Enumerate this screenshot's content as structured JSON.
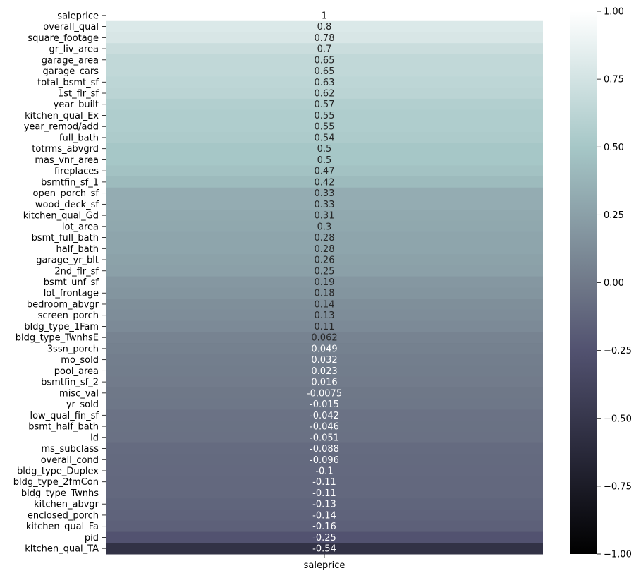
{
  "chart_data": {
    "type": "heatmap",
    "title": "",
    "xlabel": "",
    "ylabel": "",
    "columns": [
      "saleprice"
    ],
    "rows": [
      {
        "label": "saleprice",
        "value": 1,
        "text": "1"
      },
      {
        "label": "overall_qual",
        "value": 0.8,
        "text": "0.8"
      },
      {
        "label": "square_footage",
        "value": 0.78,
        "text": "0.78"
      },
      {
        "label": "gr_liv_area",
        "value": 0.7,
        "text": "0.7"
      },
      {
        "label": "garage_area",
        "value": 0.65,
        "text": "0.65"
      },
      {
        "label": "garage_cars",
        "value": 0.65,
        "text": "0.65"
      },
      {
        "label": "total_bsmt_sf",
        "value": 0.63,
        "text": "0.63"
      },
      {
        "label": "1st_flr_sf",
        "value": 0.62,
        "text": "0.62"
      },
      {
        "label": "year_built",
        "value": 0.57,
        "text": "0.57"
      },
      {
        "label": "kitchen_qual_Ex",
        "value": 0.55,
        "text": "0.55"
      },
      {
        "label": "year_remod/add",
        "value": 0.55,
        "text": "0.55"
      },
      {
        "label": "full_bath",
        "value": 0.54,
        "text": "0.54"
      },
      {
        "label": "totrms_abvgrd",
        "value": 0.5,
        "text": "0.5"
      },
      {
        "label": "mas_vnr_area",
        "value": 0.5,
        "text": "0.5"
      },
      {
        "label": "fireplaces",
        "value": 0.47,
        "text": "0.47"
      },
      {
        "label": "bsmtfin_sf_1",
        "value": 0.42,
        "text": "0.42"
      },
      {
        "label": "open_porch_sf",
        "value": 0.33,
        "text": "0.33"
      },
      {
        "label": "wood_deck_sf",
        "value": 0.33,
        "text": "0.33"
      },
      {
        "label": "kitchen_qual_Gd",
        "value": 0.31,
        "text": "0.31"
      },
      {
        "label": "lot_area",
        "value": 0.3,
        "text": "0.3"
      },
      {
        "label": "bsmt_full_bath",
        "value": 0.28,
        "text": "0.28"
      },
      {
        "label": "half_bath",
        "value": 0.28,
        "text": "0.28"
      },
      {
        "label": "garage_yr_blt",
        "value": 0.26,
        "text": "0.26"
      },
      {
        "label": "2nd_flr_sf",
        "value": 0.25,
        "text": "0.25"
      },
      {
        "label": "bsmt_unf_sf",
        "value": 0.19,
        "text": "0.19"
      },
      {
        "label": "lot_frontage",
        "value": 0.18,
        "text": "0.18"
      },
      {
        "label": "bedroom_abvgr",
        "value": 0.14,
        "text": "0.14"
      },
      {
        "label": "screen_porch",
        "value": 0.13,
        "text": "0.13"
      },
      {
        "label": "bldg_type_1Fam",
        "value": 0.11,
        "text": "0.11"
      },
      {
        "label": "bldg_type_TwnhsE",
        "value": 0.062,
        "text": "0.062"
      },
      {
        "label": "3ssn_porch",
        "value": 0.049,
        "text": "0.049"
      },
      {
        "label": "mo_sold",
        "value": 0.032,
        "text": "0.032"
      },
      {
        "label": "pool_area",
        "value": 0.023,
        "text": "0.023"
      },
      {
        "label": "bsmtfin_sf_2",
        "value": 0.016,
        "text": "0.016"
      },
      {
        "label": "misc_val",
        "value": -0.0075,
        "text": "-0.0075"
      },
      {
        "label": "yr_sold",
        "value": -0.015,
        "text": "-0.015"
      },
      {
        "label": "low_qual_fin_sf",
        "value": -0.042,
        "text": "-0.042"
      },
      {
        "label": "bsmt_half_bath",
        "value": -0.046,
        "text": "-0.046"
      },
      {
        "label": "id",
        "value": -0.051,
        "text": "-0.051"
      },
      {
        "label": "ms_subclass",
        "value": -0.088,
        "text": "-0.088"
      },
      {
        "label": "overall_cond",
        "value": -0.096,
        "text": "-0.096"
      },
      {
        "label": "bldg_type_Duplex",
        "value": -0.1,
        "text": "-0.1"
      },
      {
        "label": "bldg_type_2fmCon",
        "value": -0.11,
        "text": "-0.11"
      },
      {
        "label": "bldg_type_Twnhs",
        "value": -0.11,
        "text": "-0.11"
      },
      {
        "label": "kitchen_abvgr",
        "value": -0.13,
        "text": "-0.13"
      },
      {
        "label": "enclosed_porch",
        "value": -0.14,
        "text": "-0.14"
      },
      {
        "label": "kitchen_qual_Fa",
        "value": -0.16,
        "text": "-0.16"
      },
      {
        "label": "pid",
        "value": -0.25,
        "text": "-0.25"
      },
      {
        "label": "kitchen_qual_TA",
        "value": -0.54,
        "text": "-0.54"
      }
    ],
    "colorbar": {
      "colormap": "bone",
      "vmin": -1,
      "vmax": 1,
      "ticks": [
        {
          "value": 1,
          "label": "1.00"
        },
        {
          "value": 0.75,
          "label": "0.75"
        },
        {
          "value": 0.5,
          "label": "0.50"
        },
        {
          "value": 0.25,
          "label": "0.25"
        },
        {
          "value": 0,
          "label": "0.00"
        },
        {
          "value": -0.25,
          "label": "−0.25"
        },
        {
          "value": -0.5,
          "label": "−0.50"
        },
        {
          "value": -0.75,
          "label": "−0.75"
        },
        {
          "value": -1,
          "label": "−1.00"
        }
      ]
    },
    "annotation_colors": {
      "dark_text": "#262626",
      "light_text": "#ffffff"
    }
  }
}
